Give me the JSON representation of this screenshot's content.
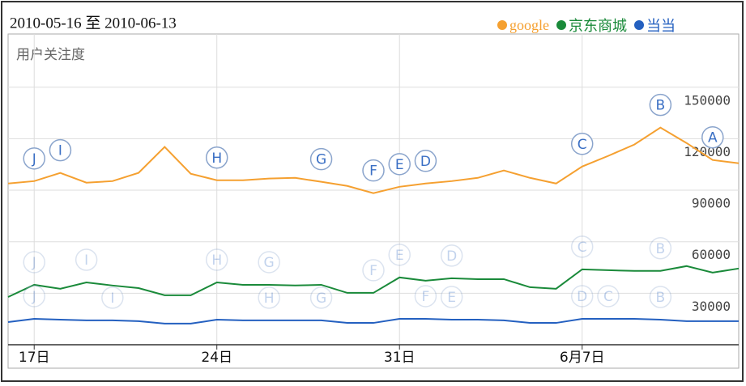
{
  "chart_data": {
    "type": "line",
    "title": "2010-05-16 至 2010-06-13",
    "y_label": "用户关注度",
    "categories": [
      null,
      "17日",
      null,
      null,
      null,
      null,
      null,
      null,
      "24日",
      null,
      null,
      null,
      null,
      null,
      null,
      "31日",
      null,
      null,
      null,
      null,
      null,
      null,
      "6月7日",
      null,
      null,
      null,
      null,
      null,
      null
    ],
    "series": [
      {
        "name": "google",
        "color": "#f5a030",
        "values": [
          93900,
          95300,
          100100,
          94400,
          95300,
          100100,
          115200,
          99600,
          95800,
          95800,
          96800,
          97200,
          94900,
          92500,
          88300,
          92000,
          93900,
          95300,
          97200,
          101500,
          97200,
          93900,
          103800,
          110000,
          116600,
          126500,
          117500,
          107600,
          105700
        ],
        "annotations": [
          {
            "label": "J",
            "index": 1
          },
          {
            "label": "I",
            "index": 2
          },
          {
            "label": "H",
            "index": 8
          },
          {
            "label": "G",
            "index": 12
          },
          {
            "label": "F",
            "index": 14
          },
          {
            "label": "E",
            "index": 15
          },
          {
            "label": "D",
            "index": 16
          },
          {
            "label": "C",
            "index": 22
          },
          {
            "label": "B",
            "index": 25
          },
          {
            "label": "A",
            "index": 27
          }
        ]
      },
      {
        "name": "京东商城",
        "color": "#1a8a3a",
        "values": [
          27800,
          34900,
          32600,
          36300,
          34500,
          33000,
          28800,
          28800,
          36300,
          34900,
          34900,
          34500,
          34900,
          30200,
          30200,
          39200,
          37300,
          38700,
          38200,
          38200,
          33500,
          32600,
          43900,
          43400,
          43000,
          43000,
          45800,
          42000,
          44400
        ],
        "annotations": [
          {
            "label": "J",
            "index": 1
          },
          {
            "label": "I",
            "index": 3
          },
          {
            "label": "H",
            "index": 8
          },
          {
            "label": "G",
            "index": 10
          },
          {
            "label": "F",
            "index": 14
          },
          {
            "label": "E",
            "index": 15
          },
          {
            "label": "D",
            "index": 17
          },
          {
            "label": "C",
            "index": 22
          },
          {
            "label": "B",
            "index": 25
          }
        ]
      },
      {
        "name": "当当",
        "color": "#2460c0",
        "values": [
          13200,
          15100,
          14600,
          14200,
          14200,
          13700,
          12300,
          12300,
          14600,
          14200,
          14200,
          14200,
          14200,
          12700,
          12700,
          15100,
          15100,
          14600,
          14600,
          14200,
          12700,
          12700,
          15100,
          15100,
          15100,
          14600,
          13700,
          13700,
          13700
        ],
        "annotations": [
          {
            "label": "J",
            "index": 1
          },
          {
            "label": "I",
            "index": 4
          },
          {
            "label": "H",
            "index": 10
          },
          {
            "label": "G",
            "index": 12
          },
          {
            "label": "F",
            "index": 16
          },
          {
            "label": "E",
            "index": 17
          },
          {
            "label": "D",
            "index": 22
          },
          {
            "label": "C",
            "index": 23
          },
          {
            "label": "B",
            "index": 25
          }
        ]
      }
    ],
    "ylim": [
      0,
      181000
    ],
    "yticks": [
      30000,
      60000,
      90000,
      120000,
      150000
    ],
    "grid": true
  }
}
